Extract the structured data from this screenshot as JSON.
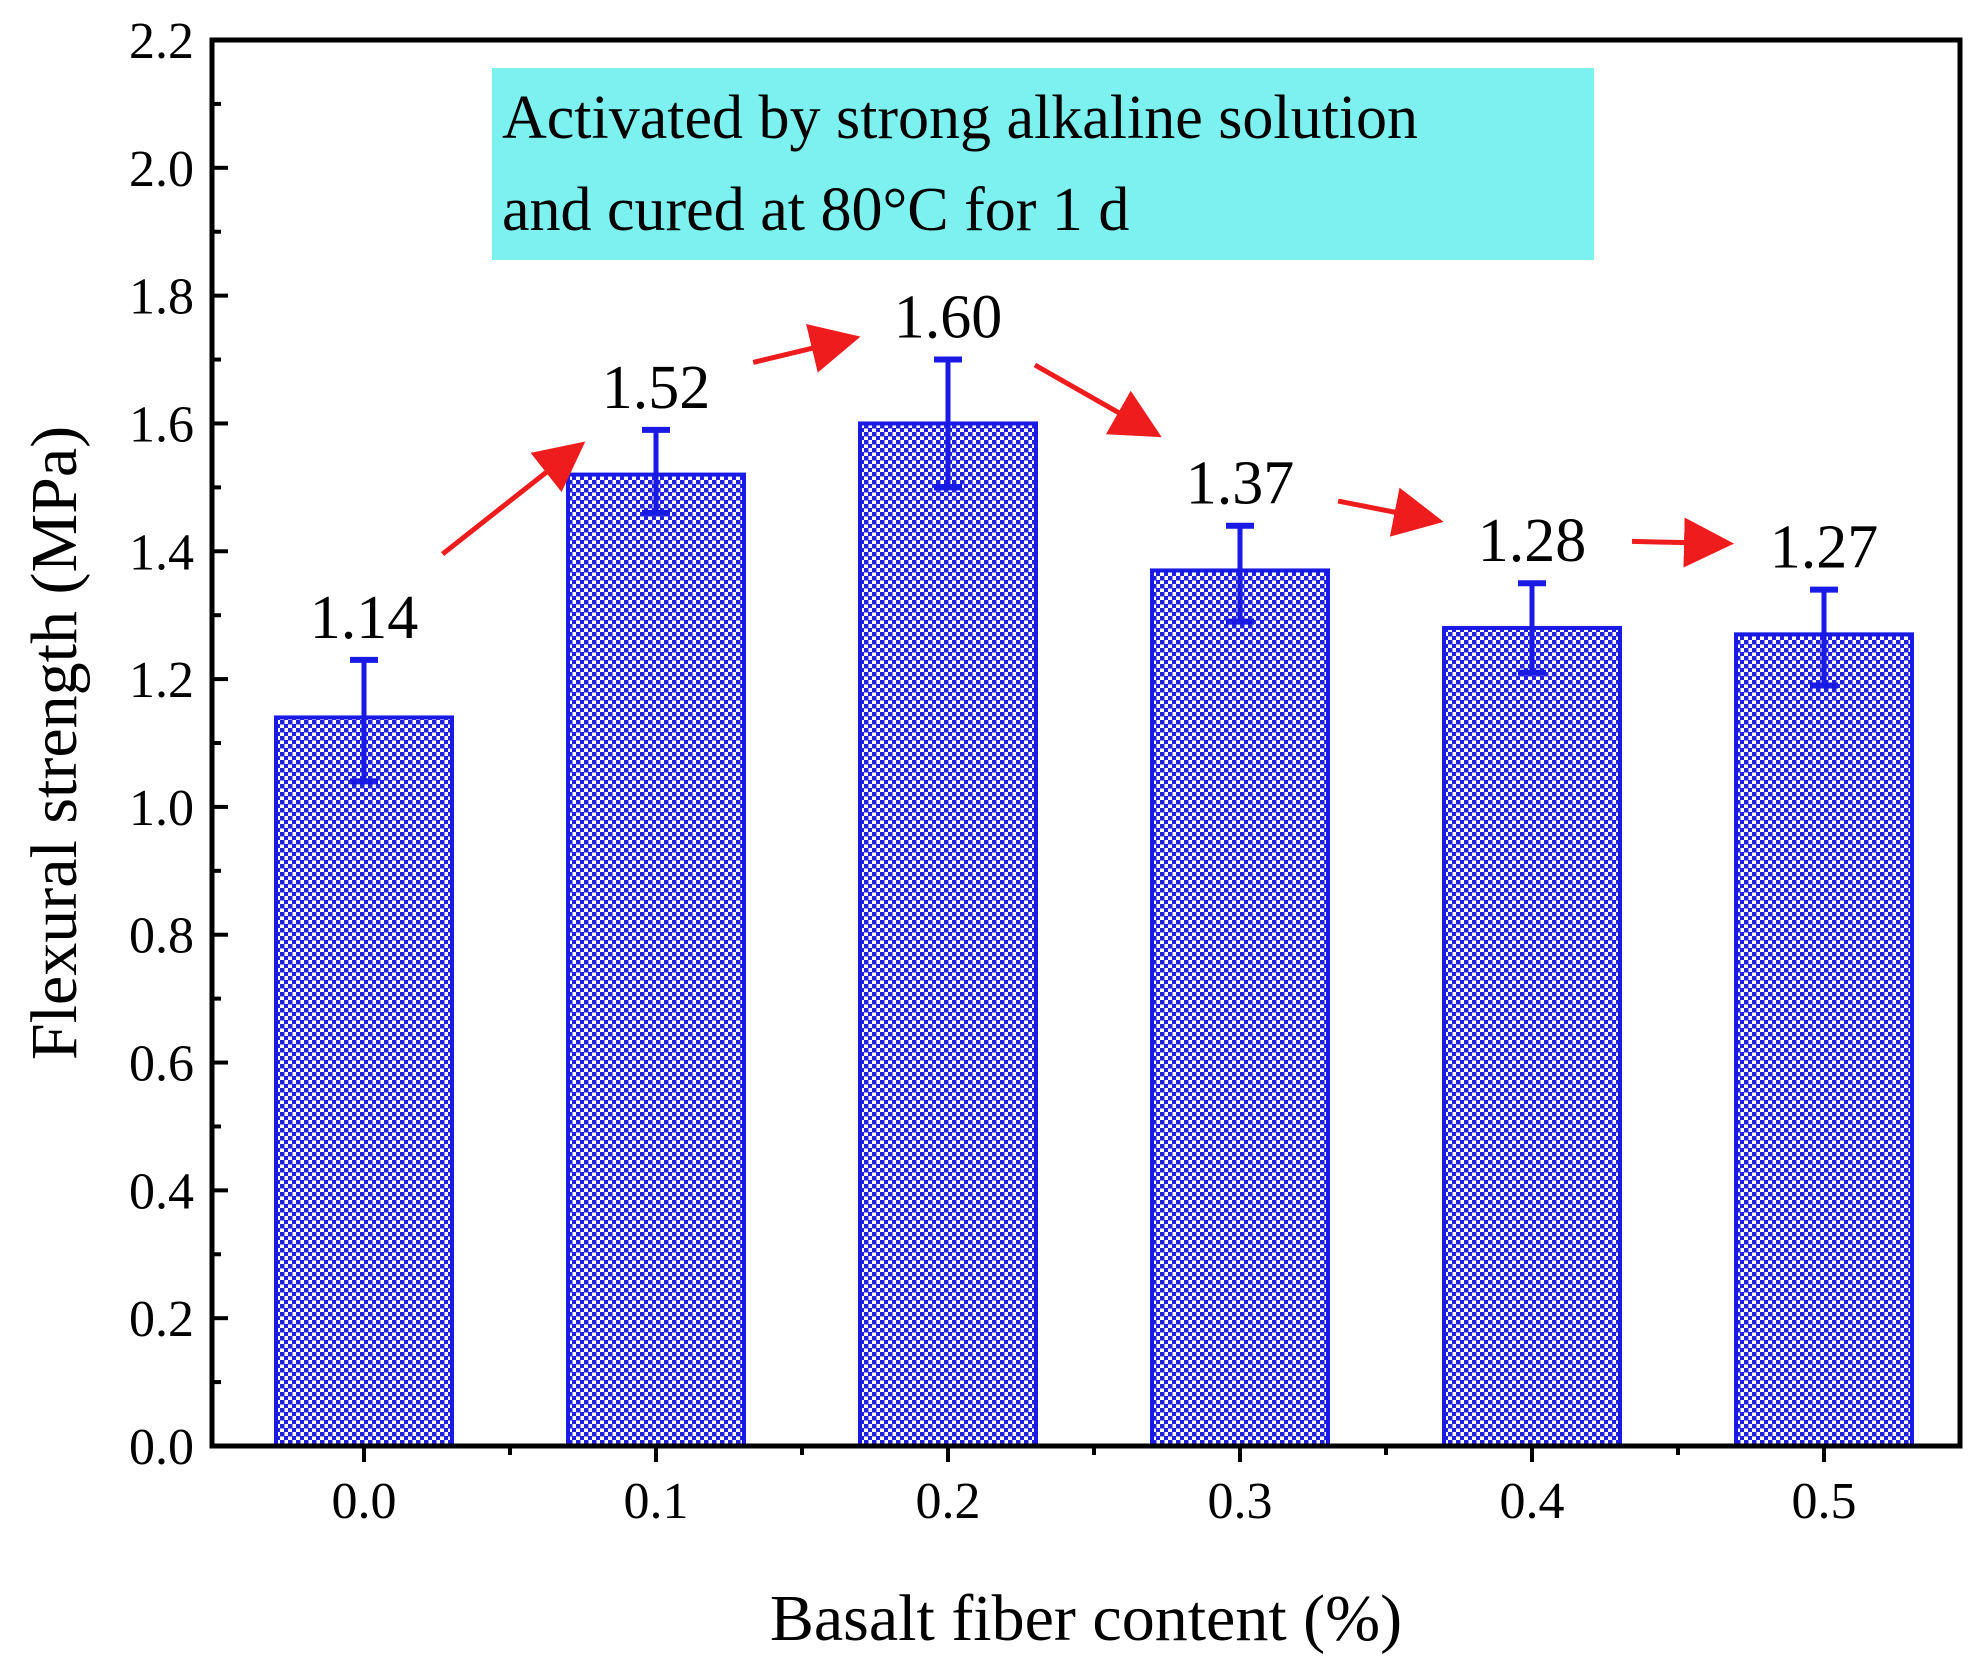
{
  "chart_data": {
    "type": "bar",
    "title": "",
    "xlabel": "Basalt fiber content (%)",
    "ylabel": "Flexural strength (MPa)",
    "categories": [
      "0.0",
      "0.1",
      "0.2",
      "0.3",
      "0.4",
      "0.5"
    ],
    "values": [
      1.14,
      1.52,
      1.6,
      1.37,
      1.28,
      1.27
    ],
    "value_labels": [
      "1.14",
      "1.52",
      "1.60",
      "1.37",
      "1.28",
      "1.27"
    ],
    "error_bars": [
      {
        "low": 1.04,
        "high": 1.23
      },
      {
        "low": 1.46,
        "high": 1.59
      },
      {
        "low": 1.5,
        "high": 1.7
      },
      {
        "low": 1.29,
        "high": 1.44
      },
      {
        "low": 1.21,
        "high": 1.35
      },
      {
        "low": 1.19,
        "high": 1.34
      }
    ],
    "ylim": [
      0.0,
      2.2
    ],
    "yticks": [
      "0.0",
      "0.2",
      "0.4",
      "0.6",
      "0.8",
      "1.0",
      "1.2",
      "1.4",
      "1.6",
      "1.8",
      "2.0",
      "2.2"
    ],
    "annotation": {
      "line1": "Activated by strong alkaline solution",
      "line2": "and cured at 80°C for 1 d"
    },
    "trend_arrows": true,
    "grid": false
  },
  "colors": {
    "bar_edge": "#1a1ae6",
    "bar_pattern": "#2020e0",
    "error_bar": "#1a1ae6",
    "arrow": "#ee1c1c",
    "annotation_bg": "#7df0f0",
    "axis": "#000000"
  }
}
